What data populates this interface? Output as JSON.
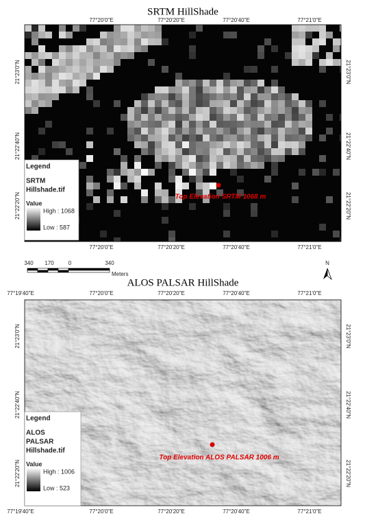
{
  "panels": [
    {
      "title": "SRTM HillShade",
      "top_lon_labels": [
        "77°20'0\"E",
        "77°20'20\"E",
        "77°20'40\"E",
        "77°21'0\"E"
      ],
      "bottom_lon_labels": [
        "77°20'0\"E",
        "77°20'20\"E",
        "77°20'40\"E",
        "77°21'0\"E"
      ],
      "left_lat_labels": [
        "21°23'0\"N",
        "21°22'40\"N",
        "21°22'20\"N"
      ],
      "right_lat_labels": [
        "21°23'0\"N",
        "21°22'40\"N",
        "21°22'20\"N"
      ],
      "legend": {
        "title": "Legend",
        "layer": [
          "SRTM",
          "Hillshade.tif"
        ],
        "value_title": "Value",
        "high": "High : 1068",
        "low": "Low : 587"
      },
      "annotation": "Top Elevation SRTM 1068 m"
    },
    {
      "title": "ALOS PALSAR HillShade",
      "top_lon_labels": [
        "77°19'40\"E",
        "77°20'0\"E",
        "77°20'20\"E",
        "77°20'40\"E",
        "77°21'0\"E"
      ],
      "bottom_lon_labels": [
        "77°19'40\"E",
        "77°20'0\"E",
        "77°20'20\"E",
        "77°20'40\"E",
        "77°21'0\"E"
      ],
      "left_lat_labels": [
        "21°23'0\"N",
        "21°22'40\"N",
        "21°22'20\"N"
      ],
      "right_lat_labels": [
        "21°23'0\"N",
        "21°22'40\"N",
        "21°22'20\"N"
      ],
      "legend": {
        "title": "Legend",
        "layer": [
          "ALOS",
          "PALSAR",
          "Hillshade.tif"
        ],
        "value_title": "Value",
        "high": "High : 1006",
        "low": "Low : 523"
      },
      "annotation": "Top Elevation ALOS PALSAR 1006 m"
    }
  ],
  "scale_bar": {
    "labels": [
      "340",
      "170",
      "0",
      "340"
    ],
    "unit": "Meters"
  },
  "north": "N"
}
